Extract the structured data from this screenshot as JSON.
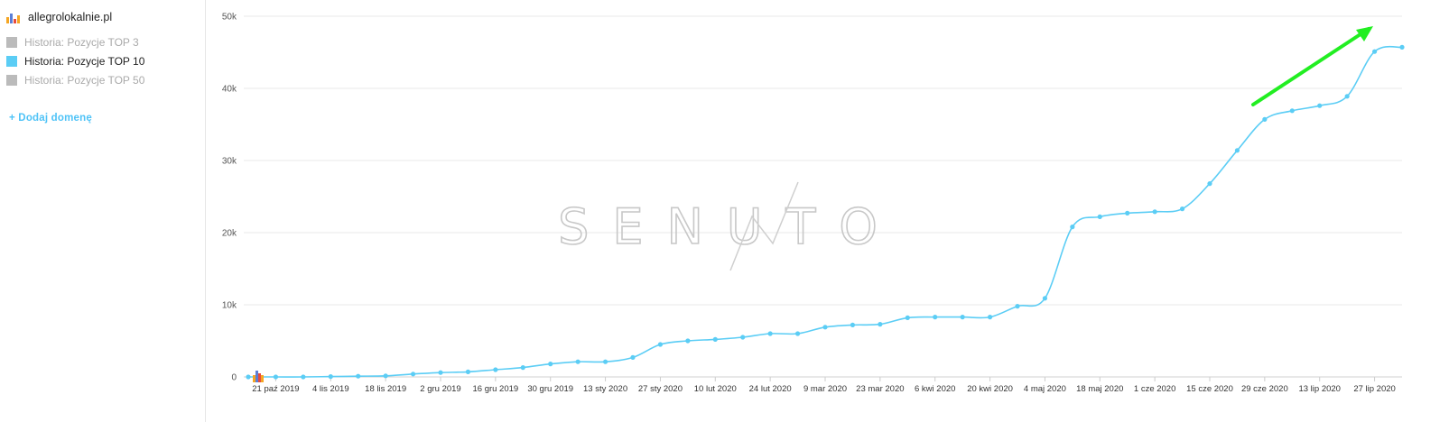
{
  "sidebar": {
    "domain": "allegrolokalnie.pl",
    "domain_icon": "bar-chart-icon",
    "legend": [
      {
        "label": "Historia: Pozycje TOP 3",
        "color": "#bbbbbb",
        "active": false
      },
      {
        "label": "Historia: Pozycje TOP 10",
        "color": "#5bcdf5",
        "active": true
      },
      {
        "label": "Historia: Pozycje TOP 50",
        "color": "#bbbbbb",
        "active": false
      }
    ],
    "add_domain": "+ Dodaj domenę"
  },
  "watermark": "SENUTO",
  "colors": {
    "line": "#5bcdf5",
    "arrow": "#22ee22",
    "grid": "#e8e8e8"
  },
  "chart_data": {
    "type": "line",
    "title": "",
    "xlabel": "",
    "ylabel": "",
    "ylim": [
      0,
      50000
    ],
    "yticks": [
      {
        "value": 0,
        "label": "0"
      },
      {
        "value": 10000,
        "label": "10k"
      },
      {
        "value": 20000,
        "label": "20k"
      },
      {
        "value": 30000,
        "label": "30k"
      },
      {
        "value": 40000,
        "label": "40k"
      },
      {
        "value": 50000,
        "label": "50k"
      }
    ],
    "x_tick_labels": [
      "21 paź 2019",
      "4 lis 2019",
      "18 lis 2019",
      "2 gru 2019",
      "16 gru 2019",
      "30 gru 2019",
      "13 sty 2020",
      "27 sty 2020",
      "10 lut 2020",
      "24 lut 2020",
      "9 mar 2020",
      "23 mar 2020",
      "6 kwi 2020",
      "20 kwi 2020",
      "4 maj 2020",
      "18 maj 2020",
      "1 cze 2020",
      "15 cze 2020",
      "29 cze 2020",
      "13 lip 2020",
      "27 lip 2020"
    ],
    "grid": true,
    "legend": "left-sidebar",
    "series": [
      {
        "name": "Historia: Pozycje TOP 10",
        "x": [
          "2019-10-14",
          "2019-10-21",
          "2019-10-28",
          "2019-11-04",
          "2019-11-11",
          "2019-11-18",
          "2019-11-25",
          "2019-12-02",
          "2019-12-09",
          "2019-12-16",
          "2019-12-23",
          "2019-12-30",
          "2020-01-06",
          "2020-01-13",
          "2020-01-20",
          "2020-01-27",
          "2020-02-03",
          "2020-02-10",
          "2020-02-17",
          "2020-02-24",
          "2020-03-02",
          "2020-03-09",
          "2020-03-16",
          "2020-03-23",
          "2020-03-30",
          "2020-04-06",
          "2020-04-13",
          "2020-04-20",
          "2020-04-27",
          "2020-05-04",
          "2020-05-11",
          "2020-05-18",
          "2020-05-25",
          "2020-06-01",
          "2020-06-08",
          "2020-06-15",
          "2020-06-22",
          "2020-06-29",
          "2020-07-06",
          "2020-07-13",
          "2020-07-20",
          "2020-07-27",
          "2020-08-03"
        ],
        "values": [
          0,
          0,
          0,
          50,
          100,
          150,
          400,
          600,
          700,
          1000,
          1300,
          1800,
          2100,
          2100,
          2700,
          4500,
          5000,
          5200,
          5500,
          6000,
          6000,
          6900,
          7200,
          7300,
          8200,
          8300,
          8300,
          8300,
          9800,
          10900,
          20800,
          22200,
          22700,
          22900,
          23300,
          26800,
          31400,
          35700,
          36900,
          37600,
          38900,
          45100,
          45700
        ]
      }
    ]
  }
}
